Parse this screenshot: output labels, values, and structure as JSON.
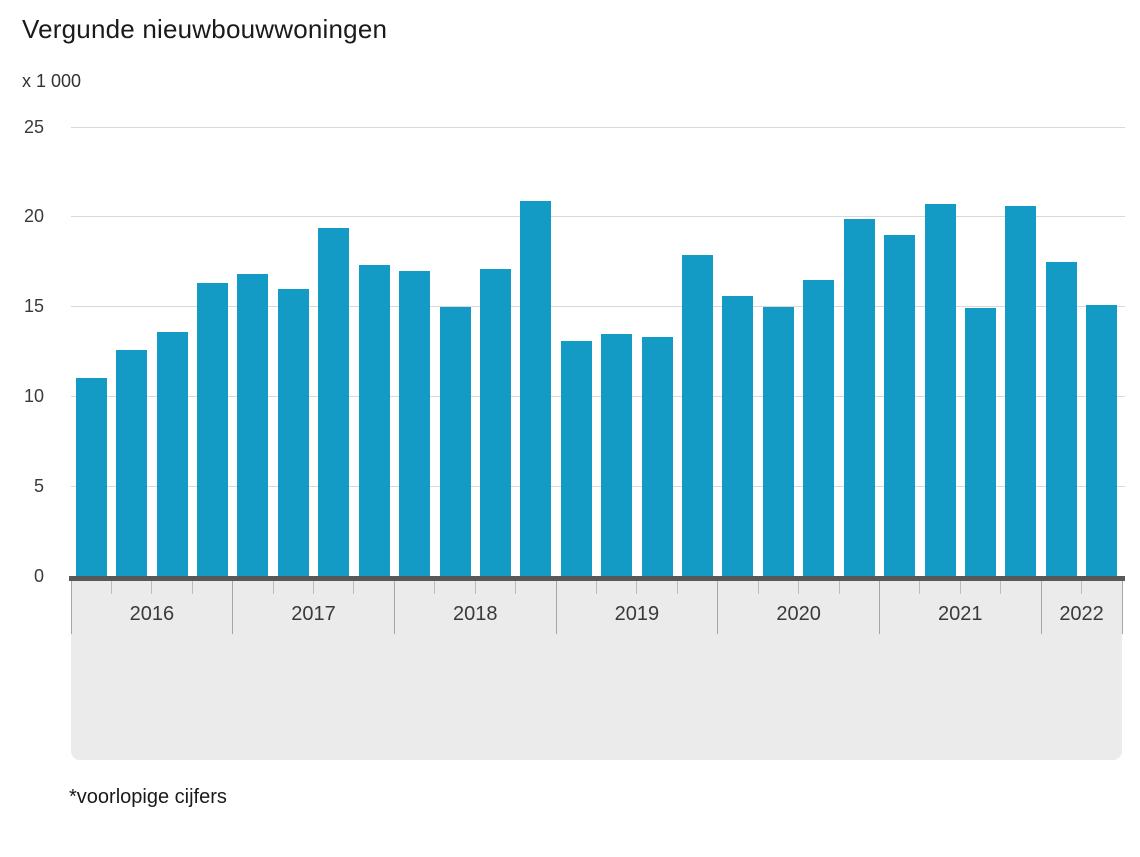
{
  "header": {
    "title": "Vergunde nieuwbouwwoningen",
    "unit_label": "x 1 000"
  },
  "footnote": "*voorlopige cijfers",
  "logo": {
    "name": "cbs-logo"
  },
  "colors": {
    "bar": "#139bc6",
    "axis_line": "#58585a",
    "gridline": "#d9d9d9",
    "band": "#ebebeb",
    "tick_minor": "#bdbdbd",
    "tick_major": "#a6a6a6",
    "title_text": "#1a1a1a",
    "axis_text": "#3a3a3a",
    "logo": "#9b9b9b"
  },
  "chart_data": {
    "type": "bar",
    "title": "Vergunde nieuwbouwwoningen",
    "unit": "x 1 000",
    "ylim": [
      0,
      25
    ],
    "yticks": [
      0,
      5,
      10,
      15,
      20,
      25
    ],
    "grid": true,
    "legend_position": "none",
    "groups": [
      {
        "year": "2016",
        "quarterly_values": [
          11.0,
          12.6,
          13.6,
          16.3
        ]
      },
      {
        "year": "2017",
        "quarterly_values": [
          16.8,
          16.0,
          19.4,
          17.3
        ]
      },
      {
        "year": "2018",
        "quarterly_values": [
          17.0,
          15.0,
          17.1,
          20.9
        ]
      },
      {
        "year": "2019",
        "quarterly_values": [
          13.1,
          13.5,
          13.3,
          17.9
        ]
      },
      {
        "year": "2020",
        "quarterly_values": [
          15.6,
          15.0,
          16.5,
          19.9
        ]
      },
      {
        "year": "2021",
        "quarterly_values": [
          19.0,
          20.7,
          14.9,
          20.6
        ]
      },
      {
        "year": "2022",
        "quarterly_values": [
          17.5,
          15.1
        ]
      }
    ]
  }
}
